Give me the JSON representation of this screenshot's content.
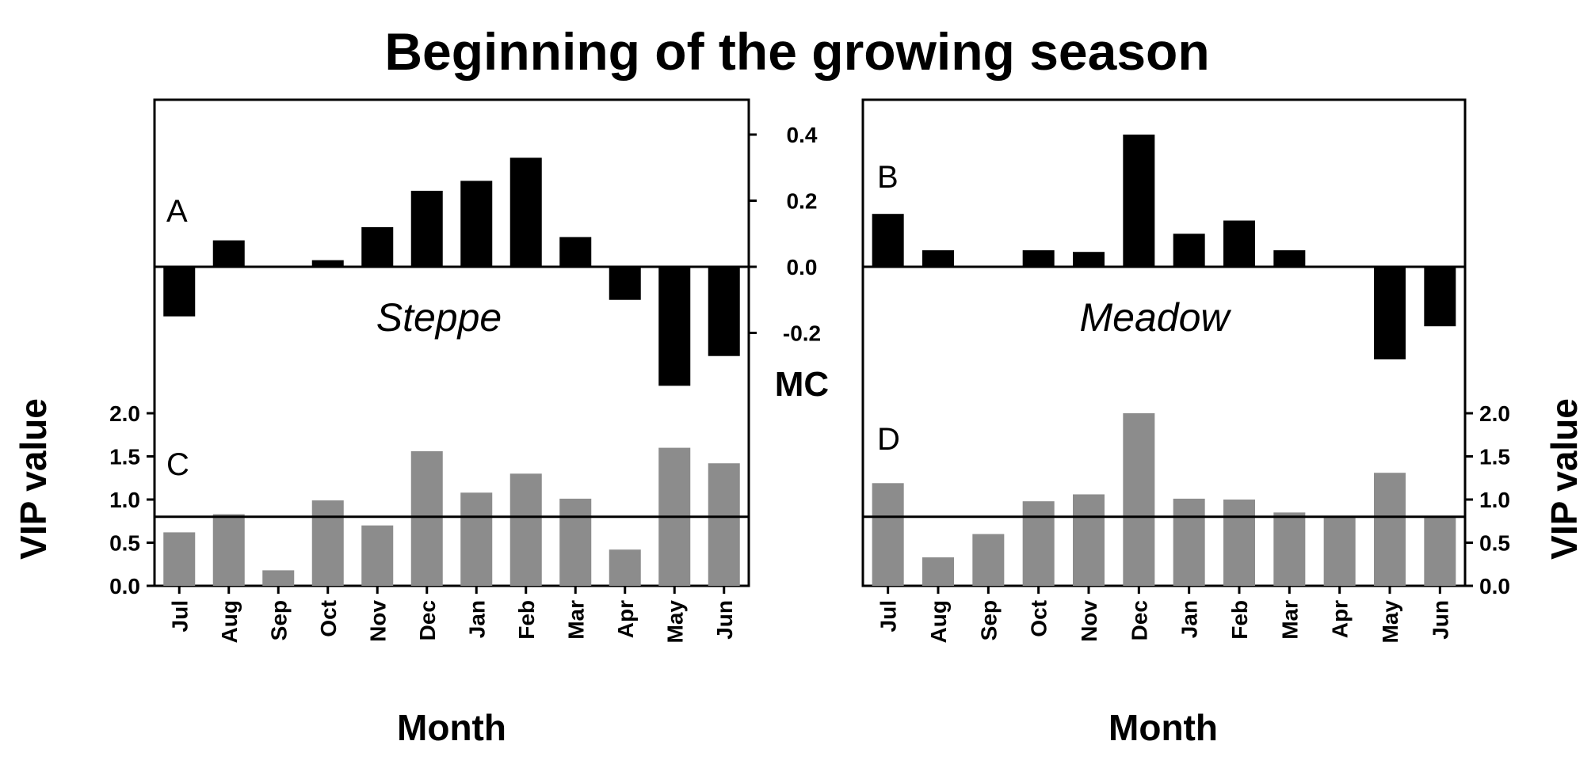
{
  "title": "Beginning of the growing season",
  "colors": {
    "mc_bar": "#000000",
    "vip_bar": "#8c8c8c",
    "axis": "#000000"
  },
  "chart_data": [
    {
      "id": "A",
      "type": "bar",
      "panel_letter": "A",
      "site_label": "Steppe",
      "categories": [
        "Jul",
        "Aug",
        "Sep",
        "Oct",
        "Nov",
        "Dec",
        "Jan",
        "Feb",
        "Mar",
        "Apr",
        "May",
        "Jun"
      ],
      "values": [
        -0.15,
        0.08,
        0.0,
        0.02,
        0.12,
        0.23,
        0.26,
        0.33,
        0.09,
        -0.1,
        -0.36,
        -0.27
      ],
      "ylim": [
        -0.39,
        0.5
      ],
      "ylabel": "MC",
      "yticks": [
        {
          "v": 0.4,
          "label": "0.4"
        },
        {
          "v": 0.2,
          "label": "0.2"
        },
        {
          "v": 0.0,
          "label": "0.0"
        },
        {
          "v": -0.2,
          "label": "-0.2"
        }
      ]
    },
    {
      "id": "B",
      "type": "bar",
      "panel_letter": "B",
      "site_label": "Meadow",
      "categories": [
        "Jul",
        "Aug",
        "Sep",
        "Oct",
        "Nov",
        "Dec",
        "Jan",
        "Feb",
        "Mar",
        "Apr",
        "May",
        "Jun"
      ],
      "values": [
        0.16,
        0.05,
        0.0,
        0.05,
        0.045,
        0.4,
        0.1,
        0.14,
        0.05,
        0.0,
        -0.28,
        -0.18
      ],
      "ylim": [
        -0.39,
        0.5
      ],
      "ylabel": "MC"
    },
    {
      "id": "C",
      "type": "bar",
      "panel_letter": "C",
      "categories": [
        "Jul",
        "Aug",
        "Sep",
        "Oct",
        "Nov",
        "Dec",
        "Jan",
        "Feb",
        "Mar",
        "Apr",
        "May",
        "Jun"
      ],
      "values": [
        0.62,
        0.83,
        0.18,
        0.99,
        0.7,
        1.56,
        1.08,
        1.3,
        1.01,
        0.42,
        1.6,
        1.42
      ],
      "ylim": [
        0,
        2.0
      ],
      "ylabel": "VIP value",
      "xlabel": "Month",
      "threshold": 0.8,
      "yticks": [
        {
          "v": 2.0,
          "label": "2.0"
        },
        {
          "v": 1.5,
          "label": "1.5"
        },
        {
          "v": 1.0,
          "label": "1.0"
        },
        {
          "v": 0.5,
          "label": "0.5"
        },
        {
          "v": 0.0,
          "label": "0.0"
        }
      ]
    },
    {
      "id": "D",
      "type": "bar",
      "panel_letter": "D",
      "categories": [
        "Jul",
        "Aug",
        "Sep",
        "Oct",
        "Nov",
        "Dec",
        "Jan",
        "Feb",
        "Mar",
        "Apr",
        "May",
        "Jun"
      ],
      "values": [
        1.19,
        0.33,
        0.6,
        0.98,
        1.06,
        2.0,
        1.01,
        1.0,
        0.85,
        0.79,
        1.31,
        0.8
      ],
      "ylim": [
        0,
        2.0
      ],
      "ylabel": "VIP value",
      "xlabel": "Month",
      "threshold": 0.8,
      "yticks": [
        {
          "v": 2.0,
          "label": "2.0"
        },
        {
          "v": 1.5,
          "label": "1.5"
        },
        {
          "v": 1.0,
          "label": "1.0"
        },
        {
          "v": 0.5,
          "label": "0.5"
        },
        {
          "v": 0.0,
          "label": "0.0"
        }
      ]
    }
  ]
}
